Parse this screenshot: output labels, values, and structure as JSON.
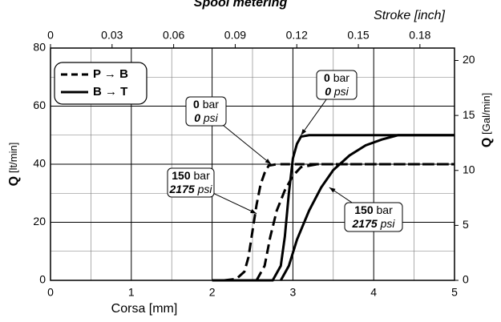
{
  "chart_data": {
    "type": "line",
    "title": "Spool metering",
    "x2label": "Stroke [inch]",
    "xlabel": "Corsa [mm]",
    "ylabel": {
      "symbol": "Q",
      "unit": "[lt/min]"
    },
    "y2label": {
      "symbol": "Q",
      "unit": "[Gal/min]"
    },
    "xlim": [
      0,
      5
    ],
    "xticks": [
      0,
      1,
      2,
      3,
      4,
      5
    ],
    "x2lim": [
      0,
      0.19685
    ],
    "x2ticks": [
      0,
      0.03,
      0.06,
      0.09,
      0.12,
      0.15,
      0.18
    ],
    "ylim": [
      0,
      80
    ],
    "yticks": [
      0,
      20,
      40,
      60,
      80
    ],
    "y2lim": [
      0,
      21.13
    ],
    "y2ticks": [
      0,
      5,
      10,
      15,
      20
    ],
    "grid": true,
    "minor_grid": true,
    "legend": "upper left",
    "series": [
      {
        "name": "P → B",
        "dashed": true,
        "color": "#000000",
        "lines": [
          {
            "x": [
              2.15,
              2.3,
              2.4,
              2.45,
              2.5,
              2.55,
              2.6,
              2.65,
              2.7,
              2.8,
              5
            ],
            "values": [
              0,
              0.5,
              3,
              8,
              17,
              26,
              33,
              37,
              39.5,
              40,
              40
            ]
          },
          {
            "x": [
              2.55,
              2.65,
              2.72,
              2.8,
              2.9,
              3.0,
              3.1,
              3.3,
              5
            ],
            "values": [
              0,
              5,
              15,
              24,
              31,
              36,
              39,
              40,
              40
            ]
          }
        ]
      },
      {
        "name": "B → T",
        "dashed": false,
        "color": "#000000",
        "lines": [
          {
            "x": [
              2.0,
              2.75,
              2.85,
              2.9,
              2.95,
              3.0,
              3.05,
              3.1,
              3.2,
              5
            ],
            "values": [
              0,
              0,
              5,
              15,
              30,
              42,
              47,
              49.5,
              50,
              50
            ]
          },
          {
            "x": [
              2.85,
              2.95,
              3.05,
              3.2,
              3.35,
              3.5,
              3.7,
              3.9,
              4.1,
              4.3,
              5
            ],
            "values": [
              0,
              5,
              14,
              24,
              32,
              38,
              43,
              46.5,
              48.5,
              50,
              50
            ]
          }
        ]
      }
    ],
    "annotations": [
      {
        "bar": 0,
        "bar_unit": "bar",
        "psi": 0,
        "psi_unit": "psi",
        "x": 3.1,
        "y": 50
      },
      {
        "bar": 0,
        "bar_unit": "bar",
        "psi": 0,
        "psi_unit": "psi",
        "x": 2.73,
        "y": 40
      },
      {
        "bar": 150,
        "bar_unit": "bar",
        "psi": 2175,
        "psi_unit": "psi",
        "x": 2.55,
        "y": 23
      },
      {
        "bar": 150,
        "bar_unit": "bar",
        "psi": 2175,
        "psi_unit": "psi",
        "x": 3.45,
        "y": 32
      }
    ]
  }
}
